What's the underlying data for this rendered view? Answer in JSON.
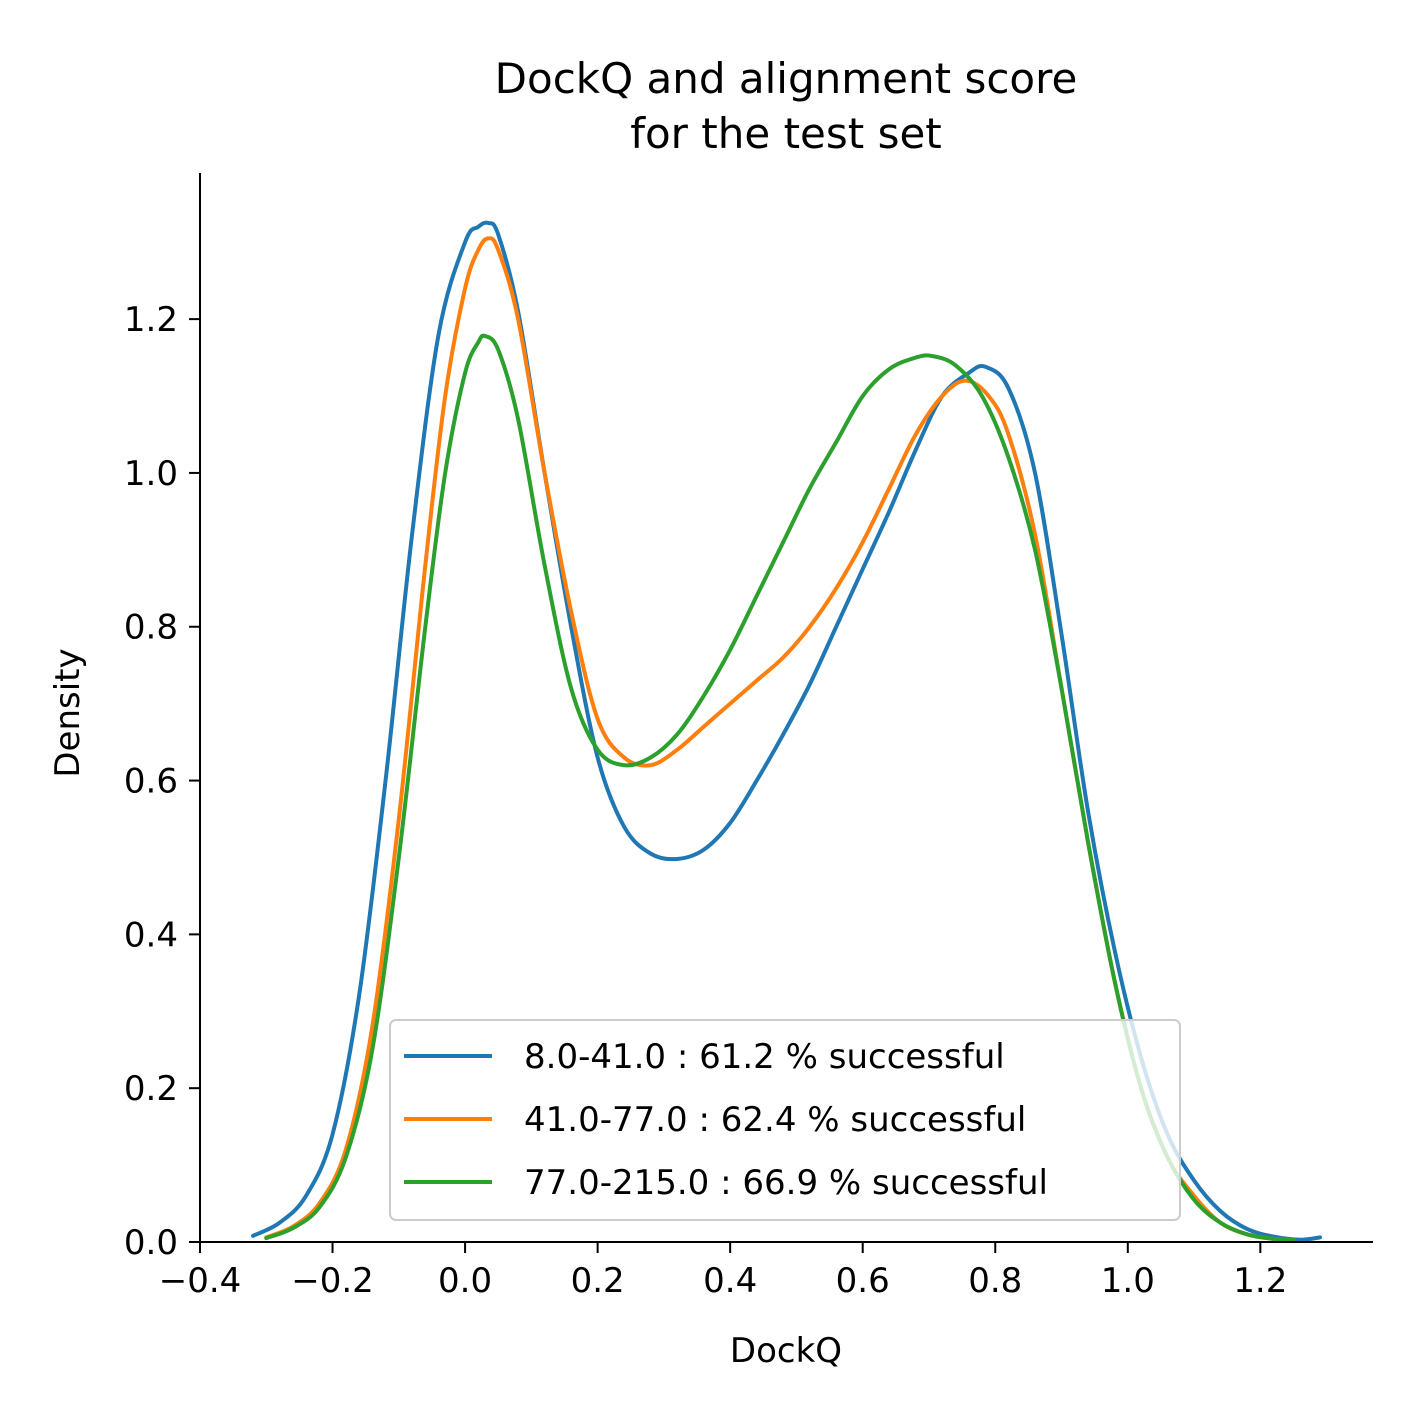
{
  "chart_data": {
    "type": "line",
    "title": [
      "DockQ and alignment score",
      "for the test set"
    ],
    "xlabel": "DockQ",
    "ylabel": "Density",
    "xlim": [
      -0.4,
      1.37
    ],
    "ylim": [
      0.0,
      1.39
    ],
    "x_ticks": [
      -0.4,
      -0.2,
      0.0,
      0.2,
      0.4,
      0.6,
      0.8,
      1.0,
      1.2
    ],
    "x_tick_labels": [
      "−0.4",
      "−0.2",
      "0.0",
      "0.2",
      "0.4",
      "0.6",
      "0.8",
      "1.0",
      "1.2"
    ],
    "y_ticks": [
      0.0,
      0.2,
      0.4,
      0.6,
      0.8,
      1.0,
      1.2
    ],
    "y_tick_labels": [
      "0.0",
      "0.2",
      "0.4",
      "0.6",
      "0.8",
      "1.0",
      "1.2"
    ],
    "grid": false,
    "legend_position": "lower center",
    "series": [
      {
        "name": "8.0-41.0 : 61.2 % successful",
        "color": "#1f77b4",
        "x": [
          -0.32,
          -0.28,
          -0.24,
          -0.2,
          -0.16,
          -0.12,
          -0.08,
          -0.04,
          0.0,
          0.02,
          0.035,
          0.05,
          0.08,
          0.12,
          0.16,
          0.2,
          0.24,
          0.28,
          0.32,
          0.36,
          0.4,
          0.44,
          0.48,
          0.52,
          0.56,
          0.6,
          0.64,
          0.68,
          0.72,
          0.76,
          0.785,
          0.82,
          0.86,
          0.9,
          0.94,
          0.98,
          1.02,
          1.06,
          1.1,
          1.14,
          1.18,
          1.22,
          1.26,
          1.29
        ],
        "y": [
          0.008,
          0.025,
          0.06,
          0.14,
          0.32,
          0.6,
          0.92,
          1.18,
          1.3,
          1.32,
          1.325,
          1.31,
          1.21,
          1.0,
          0.8,
          0.63,
          0.54,
          0.505,
          0.498,
          0.51,
          0.545,
          0.6,
          0.66,
          0.725,
          0.8,
          0.875,
          0.95,
          1.03,
          1.1,
          1.13,
          1.138,
          1.11,
          1.0,
          0.79,
          0.56,
          0.38,
          0.24,
          0.14,
          0.08,
          0.04,
          0.017,
          0.007,
          0.003,
          0.006
        ]
      },
      {
        "name": "41.0-77.0 : 62.4 % successful",
        "color": "#ff7f0e",
        "x": [
          -0.3,
          -0.26,
          -0.22,
          -0.18,
          -0.14,
          -0.1,
          -0.06,
          -0.03,
          0.0,
          0.02,
          0.035,
          0.05,
          0.08,
          0.12,
          0.16,
          0.2,
          0.24,
          0.28,
          0.32,
          0.36,
          0.4,
          0.44,
          0.48,
          0.52,
          0.56,
          0.6,
          0.64,
          0.68,
          0.72,
          0.755,
          0.79,
          0.82,
          0.86,
          0.9,
          0.94,
          0.98,
          1.02,
          1.06,
          1.1,
          1.14,
          1.18,
          1.22,
          1.25
        ],
        "y": [
          0.006,
          0.02,
          0.05,
          0.12,
          0.28,
          0.55,
          0.88,
          1.1,
          1.24,
          1.29,
          1.305,
          1.29,
          1.2,
          1.0,
          0.82,
          0.68,
          0.63,
          0.62,
          0.64,
          0.67,
          0.7,
          0.73,
          0.76,
          0.8,
          0.85,
          0.91,
          0.98,
          1.05,
          1.1,
          1.12,
          1.1,
          1.05,
          0.92,
          0.72,
          0.52,
          0.34,
          0.2,
          0.11,
          0.06,
          0.025,
          0.01,
          0.004,
          0.003
        ]
      },
      {
        "name": "77.0-215.0 : 66.9 % successful",
        "color": "#2ca02c",
        "x": [
          -0.3,
          -0.26,
          -0.22,
          -0.18,
          -0.14,
          -0.1,
          -0.06,
          -0.03,
          0.0,
          0.02,
          0.03,
          0.05,
          0.08,
          0.12,
          0.16,
          0.2,
          0.24,
          0.28,
          0.32,
          0.36,
          0.4,
          0.44,
          0.48,
          0.52,
          0.56,
          0.6,
          0.64,
          0.68,
          0.705,
          0.74,
          0.78,
          0.82,
          0.86,
          0.9,
          0.94,
          0.98,
          1.02,
          1.06,
          1.1,
          1.14,
          1.18,
          1.22,
          1.25
        ],
        "y": [
          0.005,
          0.018,
          0.045,
          0.11,
          0.25,
          0.5,
          0.8,
          1.0,
          1.13,
          1.17,
          1.178,
          1.16,
          1.07,
          0.88,
          0.72,
          0.64,
          0.62,
          0.63,
          0.66,
          0.71,
          0.77,
          0.84,
          0.91,
          0.98,
          1.04,
          1.1,
          1.135,
          1.15,
          1.152,
          1.14,
          1.1,
          1.02,
          0.9,
          0.72,
          0.52,
          0.34,
          0.2,
          0.11,
          0.055,
          0.025,
          0.01,
          0.004,
          0.003
        ]
      }
    ]
  }
}
